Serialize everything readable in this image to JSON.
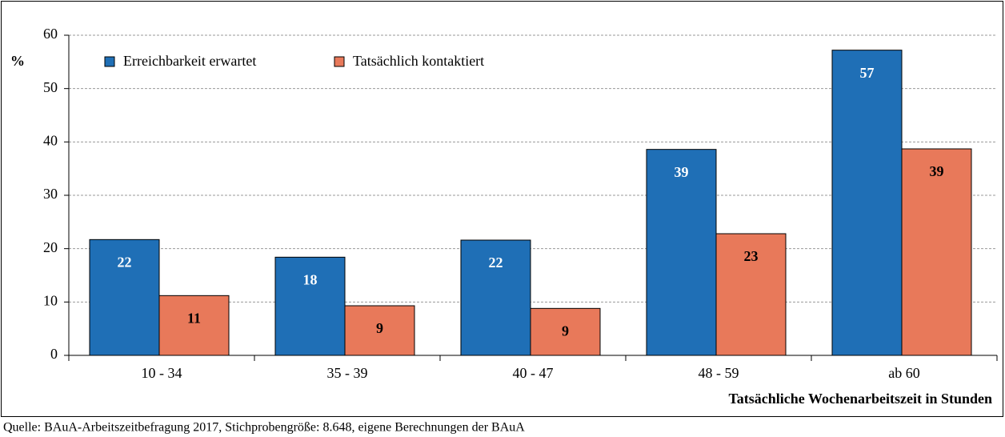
{
  "chart_data": {
    "type": "bar",
    "y_label": "%",
    "x_label": "Tatsächliche Wochenarbeitszeit in Stunden",
    "source": "Quelle: BAuA-Arbeitszeitbefragung 2017, Stichprobengröße: 8.648, eigene Berechnungen der BAuA",
    "categories": [
      "10 - 34",
      "35 - 39",
      "40 - 47",
      "48 - 59",
      "ab 60"
    ],
    "series": [
      {
        "name": "Erreichbarkeit erwartet",
        "color": "#1f6fb6",
        "label_color": "#ffffff",
        "values": [
          21.7,
          18.4,
          21.6,
          38.6,
          57.2
        ],
        "value_labels": [
          "22",
          "18",
          "22",
          "39",
          "57"
        ]
      },
      {
        "name": "Tatsächlich kontaktiert",
        "color": "#e8795a",
        "label_color": "#000000",
        "values": [
          11.2,
          9.3,
          8.8,
          22.8,
          38.7
        ],
        "value_labels": [
          "11",
          "9",
          "9",
          "23",
          "39"
        ]
      }
    ],
    "ylim": [
      0,
      60
    ],
    "yticks": [
      0,
      10,
      20,
      30,
      40,
      50,
      60
    ],
    "grid": true,
    "legend": "top-left"
  }
}
